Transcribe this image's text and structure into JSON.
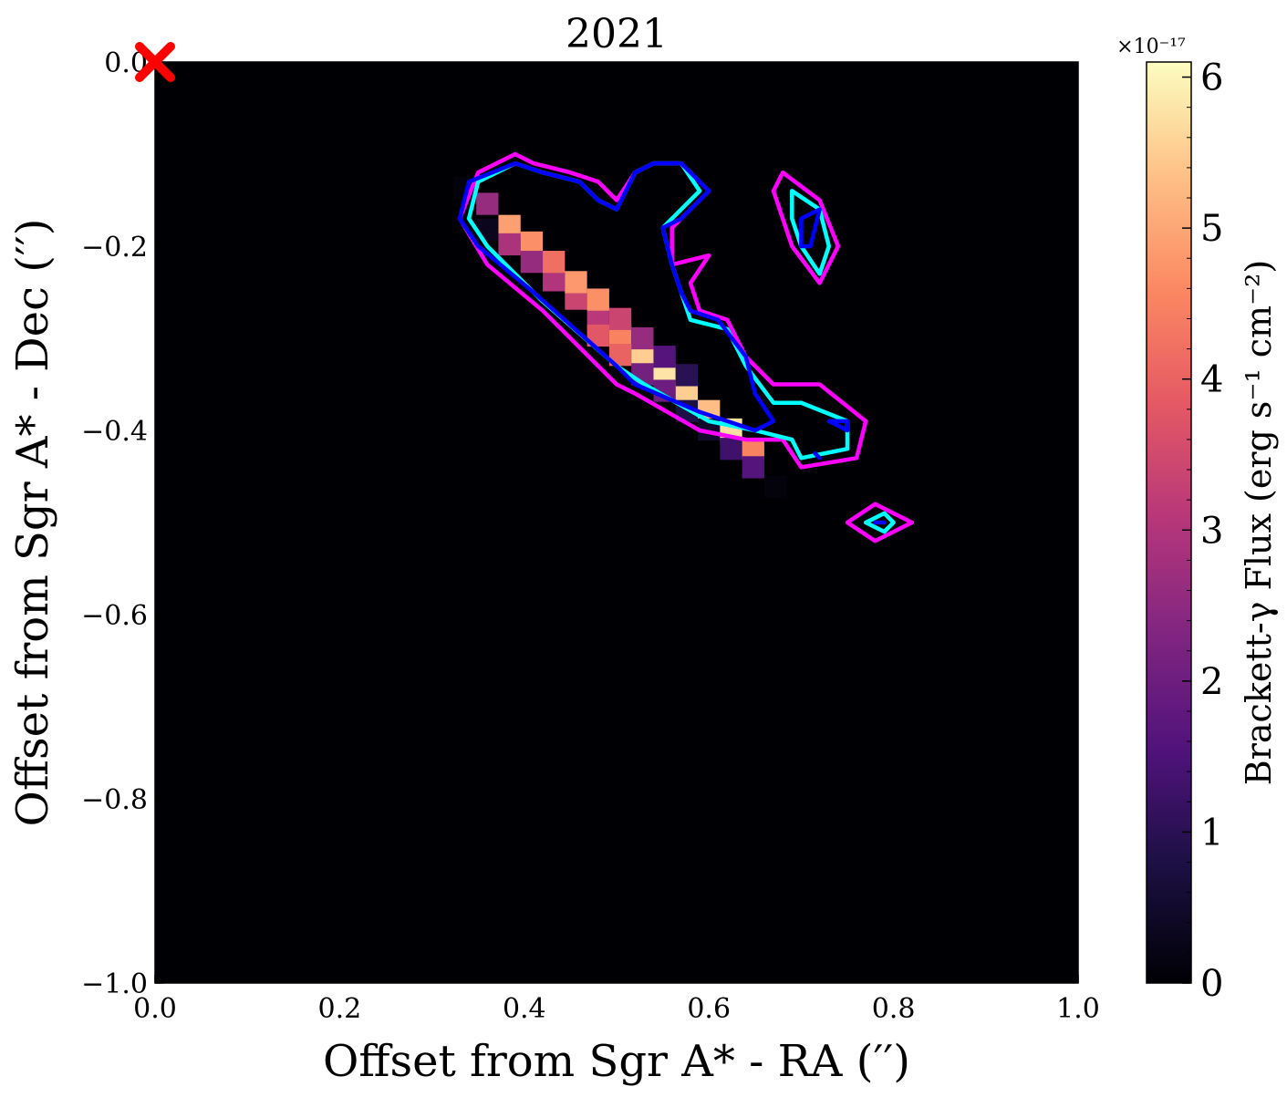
{
  "chart_data": {
    "type": "heatmap",
    "title": "2021",
    "xlabel": "Offset from Sgr A* - RA (′′)",
    "ylabel": "Offset from Sgr A* - Dec (′′)",
    "xlim": [
      0.0,
      1.0
    ],
    "ylim": [
      -1.0,
      0.0
    ],
    "x_ticks": [
      0.0,
      0.2,
      0.4,
      0.6,
      0.8,
      1.0
    ],
    "x_tick_labels": [
      "0.0",
      "0.2",
      "0.4",
      "0.6",
      "0.8",
      "1.0"
    ],
    "y_ticks": [
      0.0,
      -0.2,
      -0.4,
      -0.6,
      -0.8,
      -1.0
    ],
    "y_tick_labels": [
      "0.0",
      "−0.2",
      "−0.4",
      "−0.6",
      "−0.8",
      "−1.0"
    ],
    "background_color": "#000004",
    "marker": {
      "label": "Sgr A*",
      "x": 0.0,
      "y": 0.0,
      "symbol": "x",
      "color": "#ff0000"
    },
    "colorbar": {
      "label": "Brackett-γ Flux (erg s⁻¹ cm⁻²)",
      "scale_label": "×10⁻¹⁷",
      "min": 0,
      "max": 6.1,
      "ticks": [
        0,
        1,
        2,
        3,
        4,
        5,
        6
      ],
      "tick_labels": [
        "0",
        "1",
        "2",
        "3",
        "4",
        "5",
        "6"
      ],
      "colormap": "magma"
    },
    "pixel_size": [
      0.024,
      0.024
    ],
    "pixels": [
      {
        "x": 0.336,
        "y": -0.136,
        "v": 0.1
      },
      {
        "x": 0.36,
        "y": -0.154,
        "v": 2.6
      },
      {
        "x": 0.36,
        "y": -0.182,
        "v": 0.3
      },
      {
        "x": 0.384,
        "y": -0.178,
        "v": 4.9
      },
      {
        "x": 0.384,
        "y": -0.198,
        "v": 2.9
      },
      {
        "x": 0.408,
        "y": -0.196,
        "v": 4.7
      },
      {
        "x": 0.408,
        "y": -0.217,
        "v": 2.6
      },
      {
        "x": 0.432,
        "y": -0.237,
        "v": 3.0
      },
      {
        "x": 0.432,
        "y": -0.217,
        "v": 4.2
      },
      {
        "x": 0.456,
        "y": -0.257,
        "v": 3.4
      },
      {
        "x": 0.456,
        "y": -0.239,
        "v": 4.8
      },
      {
        "x": 0.48,
        "y": -0.278,
        "v": 3.1
      },
      {
        "x": 0.48,
        "y": -0.258,
        "v": 4.7
      },
      {
        "x": 0.48,
        "y": -0.297,
        "v": 3.8
      },
      {
        "x": 0.504,
        "y": -0.297,
        "v": 4.5
      },
      {
        "x": 0.504,
        "y": -0.318,
        "v": 4.0
      },
      {
        "x": 0.504,
        "y": -0.279,
        "v": 3.4
      },
      {
        "x": 0.528,
        "y": -0.318,
        "v": 5.5
      },
      {
        "x": 0.528,
        "y": -0.339,
        "v": 2.1
      },
      {
        "x": 0.528,
        "y": -0.3,
        "v": 2.6
      },
      {
        "x": 0.552,
        "y": -0.34,
        "v": 5.8
      },
      {
        "x": 0.552,
        "y": -0.357,
        "v": 2.0
      },
      {
        "x": 0.552,
        "y": -0.32,
        "v": 1.6
      },
      {
        "x": 0.576,
        "y": -0.36,
        "v": 5.5
      },
      {
        "x": 0.576,
        "y": -0.379,
        "v": 0.8
      },
      {
        "x": 0.576,
        "y": -0.34,
        "v": 1.0
      },
      {
        "x": 0.6,
        "y": -0.379,
        "v": 5.3
      },
      {
        "x": 0.6,
        "y": -0.399,
        "v": 0.5
      },
      {
        "x": 0.624,
        "y": -0.399,
        "v": 5.7
      },
      {
        "x": 0.624,
        "y": -0.42,
        "v": 1.3
      },
      {
        "x": 0.648,
        "y": -0.42,
        "v": 4.5
      },
      {
        "x": 0.648,
        "y": -0.44,
        "v": 1.6
      },
      {
        "x": 0.672,
        "y": -0.461,
        "v": 0.1
      }
    ],
    "contours": [
      {
        "color": "#ff00ff",
        "width": 4.5,
        "paths": [
          [
            [
              0.39,
              -0.1
            ],
            [
              0.41,
              -0.11
            ],
            [
              0.45,
              -0.12
            ],
            [
              0.48,
              -0.13
            ],
            [
              0.5,
              -0.15
            ],
            [
              0.52,
              -0.12
            ],
            [
              0.54,
              -0.11
            ],
            [
              0.57,
              -0.11
            ],
            [
              0.6,
              -0.14
            ],
            [
              0.57,
              -0.17
            ],
            [
              0.56,
              -0.18
            ],
            [
              0.56,
              -0.22
            ],
            [
              0.6,
              -0.21
            ],
            [
              0.58,
              -0.24
            ],
            [
              0.59,
              -0.27
            ],
            [
              0.62,
              -0.28
            ],
            [
              0.64,
              -0.32
            ],
            [
              0.67,
              -0.35
            ],
            [
              0.72,
              -0.35
            ],
            [
              0.77,
              -0.39
            ],
            [
              0.76,
              -0.43
            ],
            [
              0.7,
              -0.44
            ],
            [
              0.68,
              -0.41
            ],
            [
              0.64,
              -0.41
            ],
            [
              0.59,
              -0.4
            ],
            [
              0.52,
              -0.36
            ],
            [
              0.5,
              -0.35
            ],
            [
              0.42,
              -0.27
            ],
            [
              0.36,
              -0.22
            ],
            [
              0.33,
              -0.17
            ],
            [
              0.35,
              -0.12
            ],
            [
              0.39,
              -0.1
            ]
          ],
          [
            [
              0.68,
              -0.12
            ],
            [
              0.72,
              -0.15
            ],
            [
              0.74,
              -0.2
            ],
            [
              0.72,
              -0.24
            ],
            [
              0.69,
              -0.2
            ],
            [
              0.67,
              -0.14
            ],
            [
              0.68,
              -0.12
            ]
          ],
          [
            [
              0.75,
              -0.5
            ],
            [
              0.78,
              -0.48
            ],
            [
              0.82,
              -0.5
            ],
            [
              0.78,
              -0.52
            ],
            [
              0.75,
              -0.5
            ]
          ]
        ]
      },
      {
        "color": "#00ffff",
        "width": 4.5,
        "paths": [
          [
            [
              0.39,
              -0.11
            ],
            [
              0.42,
              -0.12
            ],
            [
              0.46,
              -0.13
            ],
            [
              0.48,
              -0.15
            ],
            [
              0.5,
              -0.16
            ],
            [
              0.52,
              -0.12
            ],
            [
              0.54,
              -0.11
            ],
            [
              0.57,
              -0.11
            ],
            [
              0.59,
              -0.14
            ],
            [
              0.56,
              -0.17
            ],
            [
              0.55,
              -0.18
            ],
            [
              0.56,
              -0.22
            ],
            [
              0.57,
              -0.25
            ],
            [
              0.58,
              -0.28
            ],
            [
              0.62,
              -0.29
            ],
            [
              0.64,
              -0.33
            ],
            [
              0.67,
              -0.37
            ],
            [
              0.7,
              -0.37
            ],
            [
              0.75,
              -0.39
            ],
            [
              0.75,
              -0.42
            ],
            [
              0.7,
              -0.43
            ],
            [
              0.69,
              -0.41
            ],
            [
              0.65,
              -0.4
            ],
            [
              0.6,
              -0.39
            ],
            [
              0.53,
              -0.35
            ],
            [
              0.5,
              -0.33
            ],
            [
              0.42,
              -0.26
            ],
            [
              0.36,
              -0.2
            ],
            [
              0.34,
              -0.17
            ],
            [
              0.35,
              -0.13
            ],
            [
              0.39,
              -0.11
            ]
          ],
          [
            [
              0.69,
              -0.14
            ],
            [
              0.72,
              -0.16
            ],
            [
              0.73,
              -0.2
            ],
            [
              0.72,
              -0.23
            ],
            [
              0.7,
              -0.2
            ],
            [
              0.69,
              -0.17
            ],
            [
              0.69,
              -0.14
            ]
          ],
          [
            [
              0.77,
              -0.5
            ],
            [
              0.79,
              -0.49
            ],
            [
              0.8,
              -0.5
            ],
            [
              0.79,
              -0.51
            ],
            [
              0.77,
              -0.5
            ]
          ]
        ]
      },
      {
        "color": "#0000ff",
        "width": 4.5,
        "paths": [
          [
            [
              0.39,
              -0.11
            ],
            [
              0.42,
              -0.12
            ],
            [
              0.46,
              -0.13
            ],
            [
              0.48,
              -0.15
            ],
            [
              0.5,
              -0.16
            ],
            [
              0.52,
              -0.12
            ],
            [
              0.54,
              -0.11
            ],
            [
              0.57,
              -0.11
            ],
            [
              0.6,
              -0.14
            ],
            [
              0.57,
              -0.17
            ],
            [
              0.55,
              -0.18
            ],
            [
              0.56,
              -0.22
            ],
            [
              0.57,
              -0.25
            ],
            [
              0.58,
              -0.27
            ],
            [
              0.61,
              -0.28
            ],
            [
              0.64,
              -0.32
            ],
            [
              0.65,
              -0.36
            ],
            [
              0.67,
              -0.39
            ],
            [
              0.65,
              -0.4
            ],
            [
              0.59,
              -0.38
            ],
            [
              0.52,
              -0.35
            ],
            [
              0.5,
              -0.33
            ],
            [
              0.41,
              -0.25
            ],
            [
              0.35,
              -0.2
            ],
            [
              0.33,
              -0.17
            ],
            [
              0.34,
              -0.13
            ],
            [
              0.39,
              -0.11
            ]
          ],
          [
            [
              0.7,
              -0.17
            ],
            [
              0.72,
              -0.16
            ],
            [
              0.71,
              -0.2
            ],
            [
              0.7,
              -0.2
            ],
            [
              0.7,
              -0.17
            ]
          ],
          [
            [
              0.73,
              -0.39
            ],
            [
              0.75,
              -0.39
            ],
            [
              0.75,
              -0.4
            ],
            [
              0.73,
              -0.39
            ]
          ],
          [
            [
              0.715,
              -0.425
            ],
            [
              0.72,
              -0.43
            ]
          ],
          [
            [
              0.78,
              -0.5
            ],
            [
              0.79,
              -0.5
            ]
          ]
        ]
      }
    ]
  }
}
